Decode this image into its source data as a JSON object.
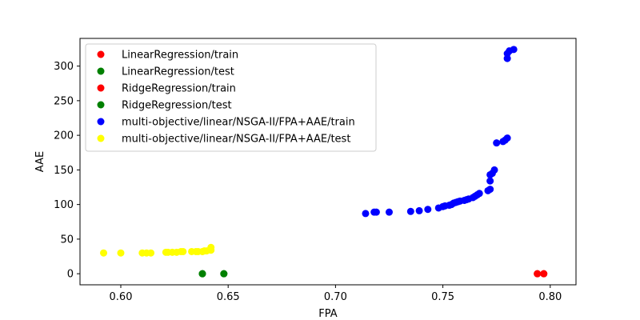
{
  "chart_data": {
    "type": "scatter",
    "xlabel": "FPA",
    "ylabel": "AAE",
    "xlim": [
      0.581,
      0.812
    ],
    "ylim": [
      -16,
      340
    ],
    "x_ticks": [
      0.6,
      0.65,
      0.7,
      0.75,
      0.8
    ],
    "x_tick_labels": [
      "0.60",
      "0.65",
      "0.70",
      "0.75",
      "0.80"
    ],
    "y_ticks": [
      0,
      50,
      100,
      150,
      200,
      250,
      300
    ],
    "y_tick_labels": [
      "0",
      "50",
      "100",
      "150",
      "200",
      "250",
      "300"
    ],
    "legend_position": "top-left",
    "series": [
      {
        "name": "LinearRegression/train",
        "color": "#ff0000",
        "points": [
          [
            0.794,
            0
          ],
          [
            0.797,
            0
          ]
        ]
      },
      {
        "name": "LinearRegression/test",
        "color": "#008000",
        "points": [
          [
            0.638,
            0
          ],
          [
            0.648,
            0
          ]
        ]
      },
      {
        "name": "RidgeRegression/train",
        "color": "#ff0000",
        "points": [
          [
            0.794,
            0
          ],
          [
            0.797,
            0
          ]
        ]
      },
      {
        "name": "RidgeRegression/test",
        "color": "#008000",
        "points": [
          [
            0.638,
            0
          ],
          [
            0.648,
            0
          ]
        ]
      },
      {
        "name": "multi-objective/linear/NSGA-II/FPA+AAE/train",
        "color": "#0000ff",
        "points": [
          [
            0.714,
            87
          ],
          [
            0.718,
            89
          ],
          [
            0.719,
            89
          ],
          [
            0.725,
            89
          ],
          [
            0.735,
            90
          ],
          [
            0.739,
            91
          ],
          [
            0.743,
            93
          ],
          [
            0.748,
            95
          ],
          [
            0.75,
            97
          ],
          [
            0.751,
            98
          ],
          [
            0.753,
            99
          ],
          [
            0.754,
            100
          ],
          [
            0.755,
            102
          ],
          [
            0.756,
            103
          ],
          [
            0.757,
            104
          ],
          [
            0.758,
            105
          ],
          [
            0.76,
            106
          ],
          [
            0.761,
            107
          ],
          [
            0.762,
            108
          ],
          [
            0.764,
            110
          ],
          [
            0.765,
            112
          ],
          [
            0.766,
            114
          ],
          [
            0.767,
            116
          ],
          [
            0.771,
            120
          ],
          [
            0.772,
            122
          ],
          [
            0.772,
            134
          ],
          [
            0.772,
            143
          ],
          [
            0.773,
            145
          ],
          [
            0.774,
            150
          ],
          [
            0.775,
            189
          ],
          [
            0.778,
            191
          ],
          [
            0.779,
            193
          ],
          [
            0.78,
            196
          ],
          [
            0.78,
            311
          ],
          [
            0.78,
            318
          ],
          [
            0.781,
            322
          ],
          [
            0.783,
            324
          ]
        ]
      },
      {
        "name": "multi-objective/linear/NSGA-II/FPA+AAE/test",
        "color": "#ffff00",
        "points": [
          [
            0.592,
            30
          ],
          [
            0.6,
            30
          ],
          [
            0.61,
            30
          ],
          [
            0.612,
            30
          ],
          [
            0.614,
            30
          ],
          [
            0.621,
            31
          ],
          [
            0.622,
            31
          ],
          [
            0.624,
            31
          ],
          [
            0.626,
            31
          ],
          [
            0.628,
            32
          ],
          [
            0.629,
            32
          ],
          [
            0.633,
            32
          ],
          [
            0.635,
            32
          ],
          [
            0.636,
            32
          ],
          [
            0.638,
            32
          ],
          [
            0.639,
            33
          ],
          [
            0.64,
            33
          ],
          [
            0.642,
            34
          ],
          [
            0.642,
            38
          ]
        ]
      }
    ]
  }
}
